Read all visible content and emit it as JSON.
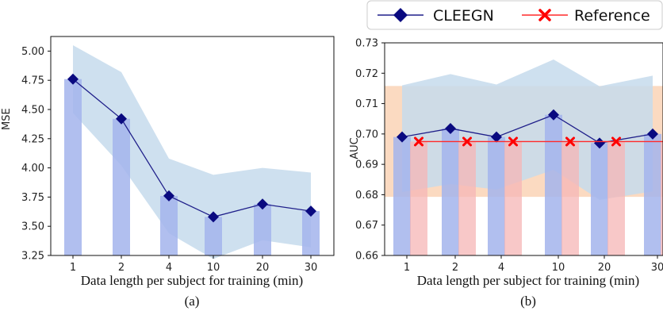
{
  "chart_data": [
    {
      "id": "a",
      "type": "bar",
      "caption": "(a)",
      "xlabel": "Data length per subject for training (min)",
      "ylabel": "MSE",
      "categories": [
        "1",
        "2",
        "4",
        "10",
        "20",
        "30"
      ],
      "ylim": [
        3.25,
        5.125
      ],
      "yticks": [
        "3.25",
        "3.50",
        "3.75",
        "4.00",
        "4.25",
        "4.50",
        "4.75",
        "5.00"
      ],
      "series": [
        {
          "name": "CLEEGN",
          "values": [
            4.76,
            4.42,
            3.76,
            3.58,
            3.69,
            3.63
          ],
          "band_upper": [
            5.05,
            4.82,
            4.08,
            3.94,
            4.0,
            3.96
          ],
          "band_lower": [
            4.47,
            4.02,
            3.44,
            3.22,
            3.38,
            3.32
          ],
          "bar_color": "#a3b4ec",
          "band_color": "#c6dbec",
          "line_color": "#1f1f8a",
          "marker_color": "#0a0a80",
          "marker": "diamond"
        }
      ]
    },
    {
      "id": "b",
      "type": "bar",
      "caption": "(b)",
      "xlabel": "Data length per subject for training (min)",
      "ylabel": "AUC",
      "categories": [
        "1",
        "2",
        "4",
        "10",
        "20",
        "30"
      ],
      "ylim": [
        0.66,
        0.73
      ],
      "yticks": [
        "0.66",
        "0.67",
        "0.68",
        "0.69",
        "0.70",
        "0.71",
        "0.72",
        "0.73"
      ],
      "legend": {
        "position": "top",
        "entries": [
          "CLEEGN",
          "Reference"
        ]
      },
      "series": [
        {
          "name": "CLEEGN",
          "values": [
            0.699,
            0.7018,
            0.699,
            0.7063,
            0.697,
            0.7
          ],
          "band_upper": [
            0.716,
            0.7197,
            0.7163,
            0.7245,
            0.7157,
            0.7192
          ],
          "band_lower": [
            0.6809,
            0.6835,
            0.6817,
            0.6882,
            0.6783,
            0.6811
          ],
          "bar_color": "#a3b4ec",
          "band_color": "#c6dbec",
          "line_color": "#1f1f8a",
          "marker_color": "#0a0a80",
          "marker": "diamond"
        },
        {
          "name": "Reference",
          "values": [
            0.6975,
            0.6975,
            0.6975,
            0.6975,
            0.6975,
            0.6975
          ],
          "band_upper": [
            0.7158,
            0.7158,
            0.7158,
            0.7158,
            0.7158,
            0.7158
          ],
          "band_lower": [
            0.6793,
            0.6793,
            0.6793,
            0.6793,
            0.6793,
            0.6793
          ],
          "bar_color": "#f6b6b6",
          "band_color": "#f9caa6",
          "line_color": "#ff2a2a",
          "marker_color": "#ff0000",
          "marker": "x"
        }
      ]
    }
  ]
}
